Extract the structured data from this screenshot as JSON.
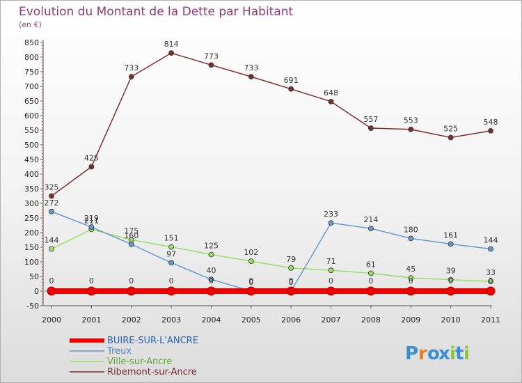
{
  "chart_data": {
    "type": "line",
    "title": "Evolution du Montant de la Dette par Habitant",
    "subtitle": "(en €)",
    "xlabel": "",
    "ylabel": "",
    "categories": [
      "2000",
      "2001",
      "2002",
      "2003",
      "2004",
      "2005",
      "2006",
      "2007",
      "2008",
      "2009",
      "2010",
      "2011"
    ],
    "ylim": [
      -50,
      850
    ],
    "yticks": [
      -50,
      0,
      50,
      100,
      150,
      200,
      250,
      300,
      350,
      400,
      450,
      500,
      550,
      600,
      650,
      700,
      750,
      800,
      850
    ],
    "grid": false,
    "legend_position": "bottom-left",
    "series": [
      {
        "name": "BUIRE-SUR-L'ANCRE",
        "color": "#ee0000",
        "values": [
          0,
          0,
          0,
          0,
          0,
          0,
          0,
          0,
          0,
          0,
          0,
          0
        ],
        "labels": [
          null,
          null,
          null,
          null,
          null,
          null,
          null,
          null,
          null,
          null,
          null,
          null
        ]
      },
      {
        "name": "Treux",
        "color": "#6699cc",
        "values": [
          272,
          219,
          160,
          97,
          40,
          0,
          0,
          233,
          214,
          180,
          161,
          144
        ],
        "labels": [
          "272",
          "219",
          "160",
          "97",
          "40",
          "0",
          "0",
          "233",
          "214",
          "180",
          "161",
          "144"
        ]
      },
      {
        "name": "Ville-sur-Ancre",
        "color": "#99dd66",
        "values": [
          144,
          211,
          175,
          151,
          125,
          102,
          79,
          71,
          61,
          45,
          39,
          33
        ],
        "labels": [
          "144",
          "211",
          "175",
          "151",
          "125",
          "102",
          "79",
          "71",
          "61",
          "45",
          "39",
          "33"
        ]
      },
      {
        "name": "Ribemont-sur-Ancre",
        "color": "#7a2e2e",
        "values": [
          325,
          425,
          733,
          814,
          773,
          733,
          691,
          648,
          557,
          553,
          525,
          548
        ],
        "labels": [
          "325",
          "425",
          "733",
          "814",
          "773",
          "733",
          "691",
          "648",
          "557",
          "553",
          "525",
          "548"
        ]
      }
    ],
    "zero_labels": [
      "0",
      "0",
      "0",
      "0",
      "0",
      "0",
      "0",
      "0",
      "0",
      "0",
      "0",
      "0"
    ]
  },
  "logo": {
    "text": "Proxiti"
  }
}
